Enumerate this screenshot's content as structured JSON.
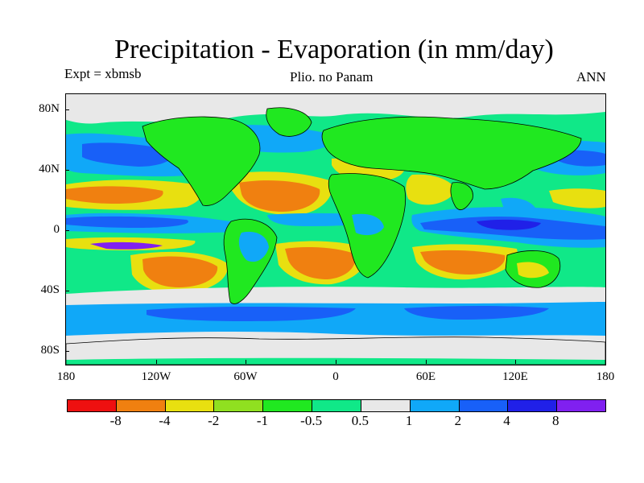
{
  "figure": {
    "title": "Precipitation - Evaporation (in mm/day)",
    "expt_label": "Expt = xbmsb",
    "subtitle": "Plio. no Panam",
    "season": "ANN"
  },
  "axes": {
    "lat_ticks": [
      "80N",
      "40N",
      "0",
      "40S",
      "80S"
    ],
    "lon_ticks": [
      "180",
      "120W",
      "60W",
      "0",
      "60E",
      "120E",
      "180"
    ]
  },
  "colorbar": {
    "colors": [
      "#ee1010",
      "#f08010",
      "#e8e010",
      "#90e020",
      "#20e820",
      "#10e888",
      "#e8e8e8",
      "#10a8f8",
      "#1860f8",
      "#2020e8",
      "#8020f0"
    ],
    "labels": [
      "-8",
      "-4",
      "-2",
      "-1",
      "-0.5",
      "0.5",
      "1",
      "2",
      "4",
      "8"
    ]
  },
  "map_colors": {
    "ocean_base": "#10e888",
    "land": "#20e820",
    "coast": "#000000"
  }
}
